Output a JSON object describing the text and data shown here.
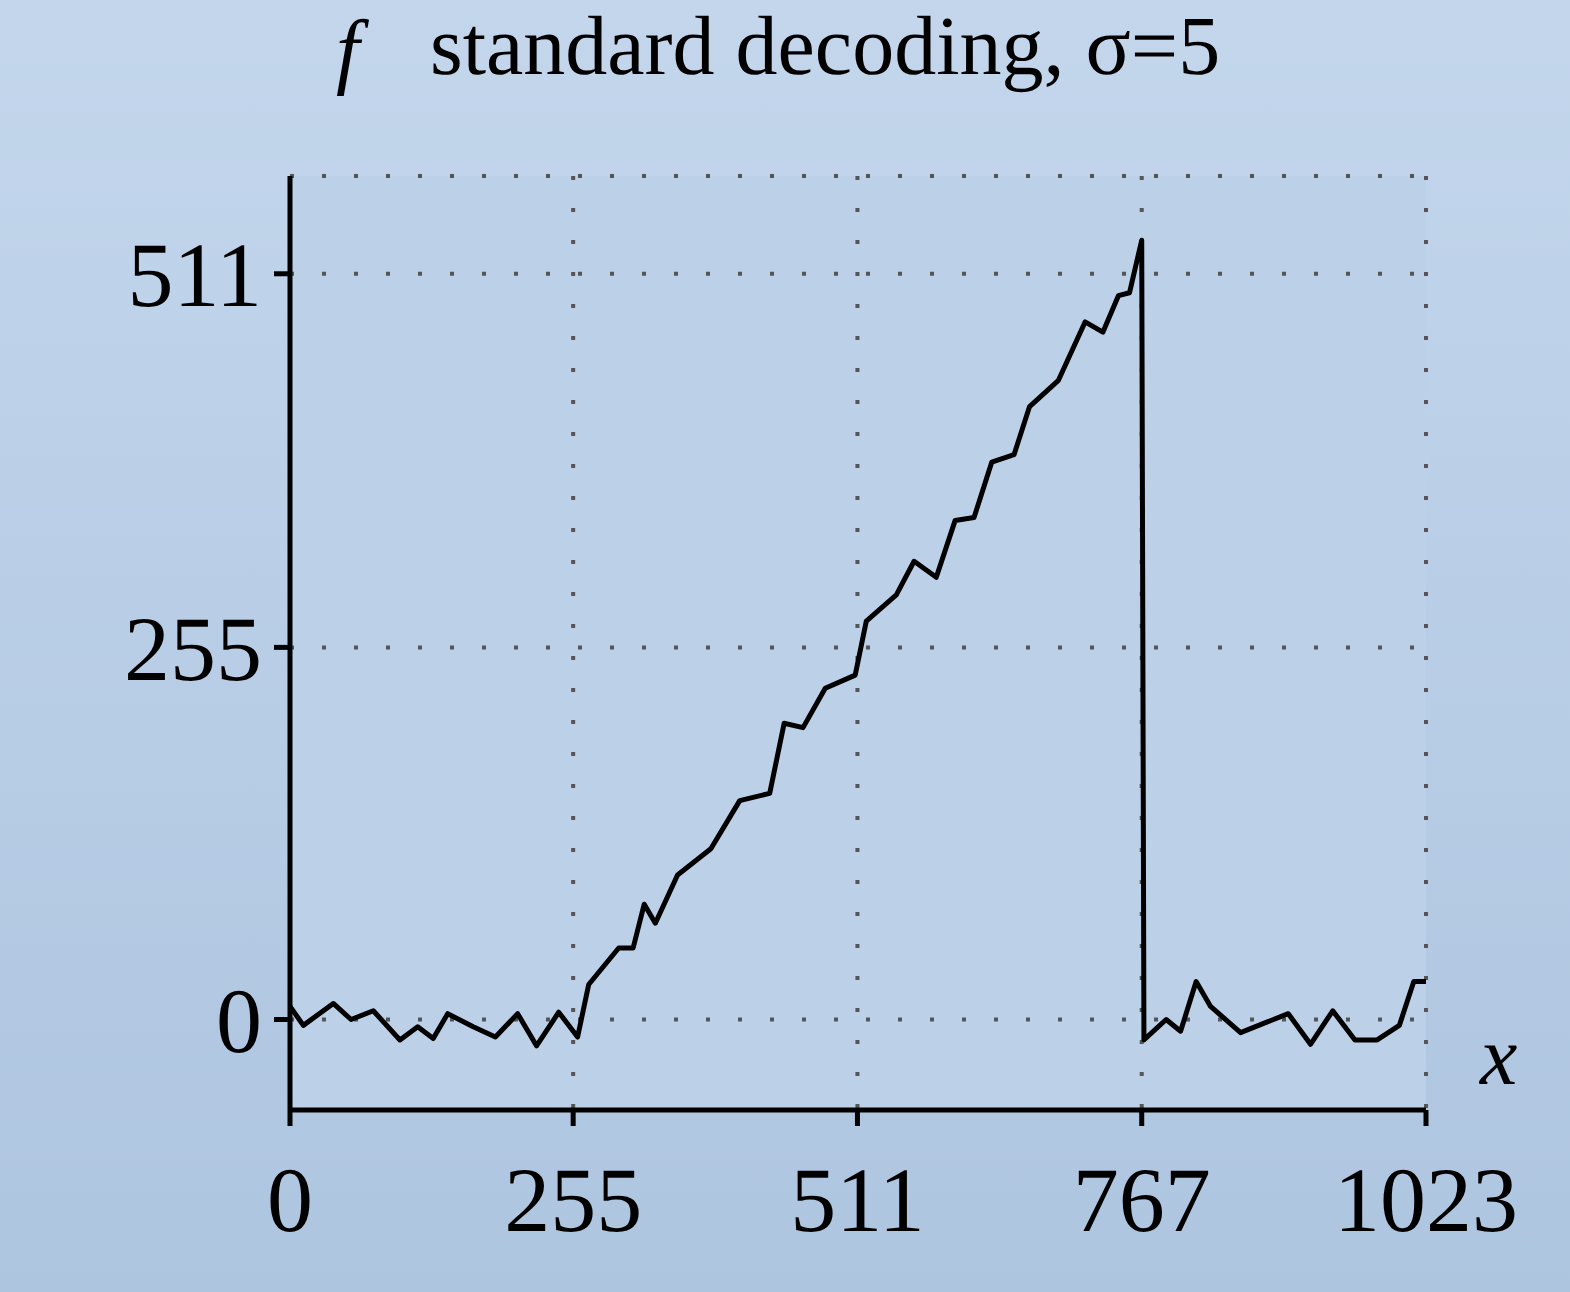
{
  "chart_data": {
    "type": "line",
    "title": "standard decoding, σ=5",
    "xlabel": "x",
    "ylabel": "f",
    "xlim": [
      0,
      1023
    ],
    "ylim": [
      -62,
      578
    ],
    "xticks": [
      0,
      255,
      511,
      767,
      1023
    ],
    "yticks": [
      0,
      255,
      511
    ],
    "grid": true,
    "line_style": "solid",
    "marker": "none",
    "series": [
      {
        "color": "#000000",
        "x": [
          0,
          12,
          39,
          55,
          75,
          99,
          115,
          129,
          142,
          165,
          185,
          205,
          222,
          242,
          259,
          269,
          296,
          309,
          319,
          329,
          349,
          379,
          405,
          432,
          445,
          462,
          482,
          509,
          519,
          546,
          562,
          582,
          599,
          616,
          632,
          652,
          666,
          692,
          716,
          732,
          746,
          756,
          767,
          769,
          789,
          802,
          816,
          829,
          856,
          879,
          899,
          919,
          939,
          959,
          979,
          999,
          1012,
          1023
        ],
        "values": [
          9,
          -4,
          11,
          0,
          6,
          -14,
          -5,
          -13,
          4,
          -5,
          -12,
          4,
          -18,
          5,
          -12,
          24,
          49,
          49,
          79,
          66,
          99,
          117,
          150,
          155,
          203,
          200,
          227,
          236,
          273,
          291,
          314,
          303,
          342,
          344,
          382,
          387,
          420,
          438,
          478,
          471,
          496,
          498,
          534,
          -14,
          0,
          -8,
          26,
          9,
          -9,
          -2,
          4,
          -17,
          6,
          -14,
          -14,
          -4,
          26,
          26
        ]
      }
    ]
  }
}
